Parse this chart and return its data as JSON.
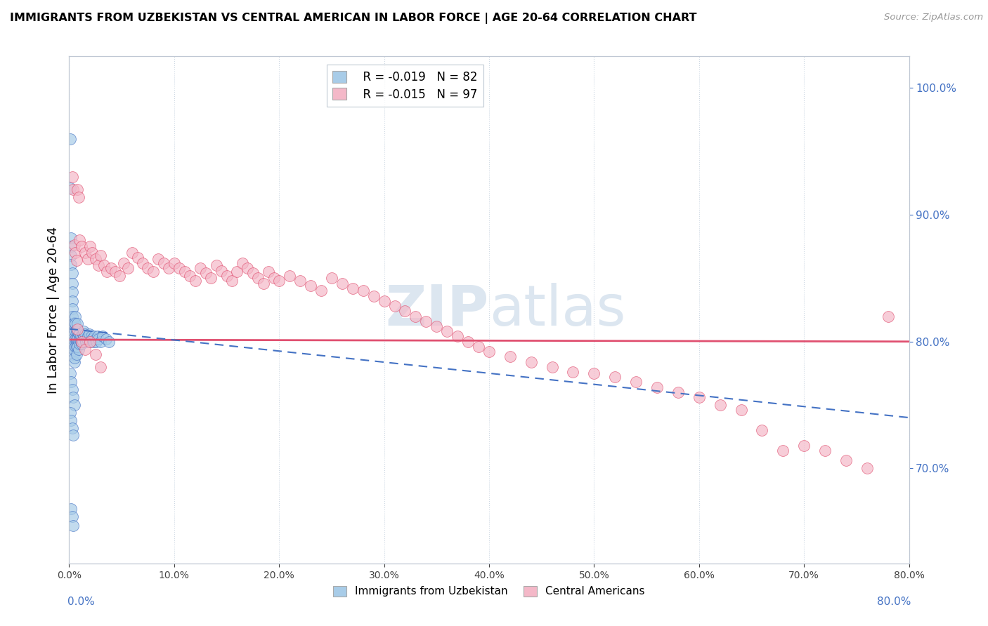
{
  "title": "IMMIGRANTS FROM UZBEKISTAN VS CENTRAL AMERICAN IN LABOR FORCE | AGE 20-64 CORRELATION CHART",
  "source": "Source: ZipAtlas.com",
  "ylabel": "In Labor Force | Age 20-64",
  "legend_blue_r": "R = -0.019",
  "legend_blue_n": "N = 82",
  "legend_pink_r": "R = -0.015",
  "legend_pink_n": "N = 97",
  "legend_blue_label": "Immigrants from Uzbekistan",
  "legend_pink_label": "Central Americans",
  "blue_color": "#a8cce8",
  "pink_color": "#f4b8c8",
  "blue_line_color": "#4472c4",
  "pink_line_color": "#e05070",
  "watermark": "ZIPAtlas",
  "watermark_color": "#dce6f0",
  "xlim": [
    0.0,
    0.8
  ],
  "ylim": [
    0.625,
    1.025
  ],
  "blue_scatter_x": [
    0.001,
    0.001,
    0.002,
    0.002,
    0.002,
    0.002,
    0.003,
    0.003,
    0.003,
    0.003,
    0.003,
    0.003,
    0.004,
    0.004,
    0.004,
    0.004,
    0.004,
    0.005,
    0.005,
    0.005,
    0.005,
    0.005,
    0.005,
    0.006,
    0.006,
    0.006,
    0.006,
    0.006,
    0.007,
    0.007,
    0.007,
    0.007,
    0.007,
    0.008,
    0.008,
    0.008,
    0.008,
    0.009,
    0.009,
    0.009,
    0.01,
    0.01,
    0.01,
    0.011,
    0.011,
    0.012,
    0.012,
    0.013,
    0.013,
    0.014,
    0.014,
    0.015,
    0.015,
    0.016,
    0.017,
    0.018,
    0.019,
    0.02,
    0.021,
    0.022,
    0.023,
    0.024,
    0.025,
    0.026,
    0.027,
    0.028,
    0.03,
    0.032,
    0.035,
    0.038,
    0.001,
    0.002,
    0.003,
    0.004,
    0.005,
    0.001,
    0.002,
    0.003,
    0.004,
    0.002,
    0.003,
    0.004
  ],
  "blue_scatter_y": [
    0.96,
    0.921,
    0.882,
    0.875,
    0.868,
    0.861,
    0.854,
    0.846,
    0.839,
    0.832,
    0.826,
    0.82,
    0.814,
    0.808,
    0.802,
    0.796,
    0.79,
    0.784,
    0.799,
    0.793,
    0.787,
    0.801,
    0.815,
    0.82,
    0.814,
    0.808,
    0.802,
    0.796,
    0.8,
    0.808,
    0.802,
    0.796,
    0.79,
    0.796,
    0.802,
    0.808,
    0.814,
    0.806,
    0.8,
    0.794,
    0.798,
    0.802,
    0.806,
    0.8,
    0.804,
    0.798,
    0.802,
    0.806,
    0.8,
    0.804,
    0.808,
    0.802,
    0.806,
    0.8,
    0.802,
    0.804,
    0.806,
    0.8,
    0.804,
    0.802,
    0.8,
    0.804,
    0.802,
    0.8,
    0.804,
    0.802,
    0.8,
    0.804,
    0.802,
    0.8,
    0.775,
    0.768,
    0.762,
    0.756,
    0.75,
    0.744,
    0.738,
    0.732,
    0.726,
    0.668,
    0.662,
    0.655
  ],
  "pink_scatter_x": [
    0.003,
    0.004,
    0.005,
    0.006,
    0.007,
    0.008,
    0.009,
    0.01,
    0.012,
    0.015,
    0.018,
    0.02,
    0.022,
    0.025,
    0.028,
    0.03,
    0.033,
    0.036,
    0.04,
    0.044,
    0.048,
    0.052,
    0.056,
    0.06,
    0.065,
    0.07,
    0.075,
    0.08,
    0.085,
    0.09,
    0.095,
    0.1,
    0.105,
    0.11,
    0.115,
    0.12,
    0.125,
    0.13,
    0.135,
    0.14,
    0.145,
    0.15,
    0.155,
    0.16,
    0.165,
    0.17,
    0.175,
    0.18,
    0.185,
    0.19,
    0.195,
    0.2,
    0.21,
    0.22,
    0.23,
    0.24,
    0.25,
    0.26,
    0.27,
    0.28,
    0.29,
    0.3,
    0.31,
    0.32,
    0.33,
    0.34,
    0.35,
    0.36,
    0.37,
    0.38,
    0.39,
    0.4,
    0.42,
    0.44,
    0.46,
    0.48,
    0.5,
    0.52,
    0.54,
    0.56,
    0.58,
    0.6,
    0.62,
    0.64,
    0.66,
    0.68,
    0.7,
    0.72,
    0.74,
    0.76,
    0.78,
    0.008,
    0.012,
    0.015,
    0.02,
    0.025,
    0.03
  ],
  "pink_scatter_y": [
    0.93,
    0.92,
    0.876,
    0.87,
    0.864,
    0.92,
    0.914,
    0.88,
    0.875,
    0.87,
    0.865,
    0.875,
    0.87,
    0.865,
    0.86,
    0.868,
    0.86,
    0.855,
    0.858,
    0.855,
    0.852,
    0.862,
    0.858,
    0.87,
    0.866,
    0.862,
    0.858,
    0.855,
    0.865,
    0.862,
    0.858,
    0.862,
    0.858,
    0.855,
    0.852,
    0.848,
    0.858,
    0.854,
    0.85,
    0.86,
    0.856,
    0.852,
    0.848,
    0.855,
    0.862,
    0.858,
    0.854,
    0.85,
    0.846,
    0.855,
    0.85,
    0.848,
    0.852,
    0.848,
    0.844,
    0.84,
    0.85,
    0.846,
    0.842,
    0.84,
    0.836,
    0.832,
    0.828,
    0.824,
    0.82,
    0.816,
    0.812,
    0.808,
    0.804,
    0.8,
    0.796,
    0.792,
    0.788,
    0.784,
    0.78,
    0.776,
    0.775,
    0.772,
    0.768,
    0.764,
    0.76,
    0.756,
    0.75,
    0.746,
    0.73,
    0.714,
    0.718,
    0.714,
    0.706,
    0.7,
    0.82,
    0.81,
    0.8,
    0.794,
    0.8,
    0.79,
    0.78
  ],
  "pink_trend_x": [
    0.0,
    0.8
  ],
  "pink_trend_y": [
    0.8015,
    0.8
  ],
  "blue_trend_x": [
    0.0,
    0.8
  ],
  "blue_trend_y": [
    0.81,
    0.74
  ]
}
